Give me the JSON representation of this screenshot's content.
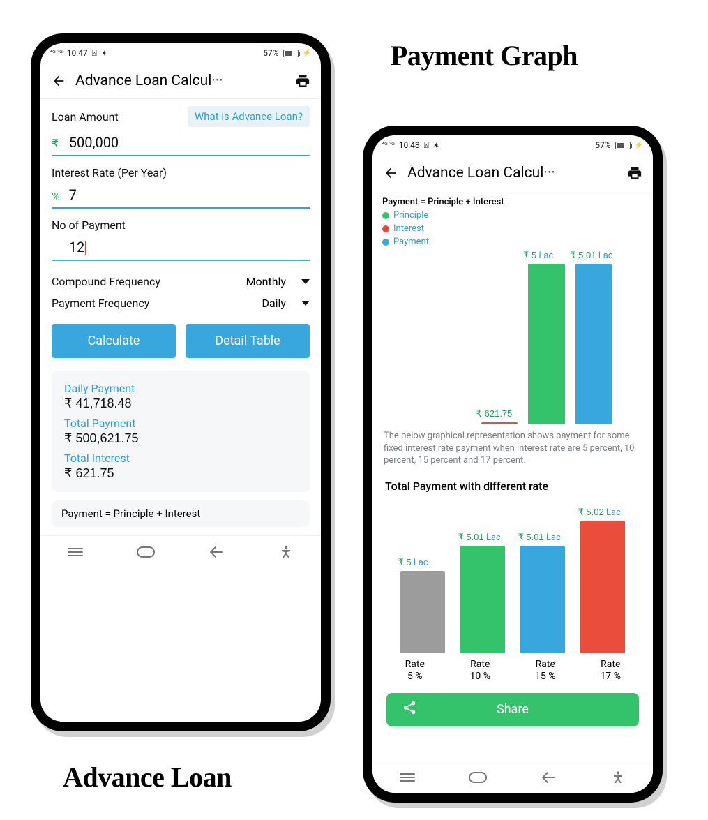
{
  "labels": {
    "right_title": "Payment Graph",
    "left_title": "Advance Loan"
  },
  "colors": {
    "accent_blue": "#37a7dd",
    "link_blue": "#2f9fd6",
    "green": "#34c36a",
    "red": "#eb4d3d",
    "grey_bar": "#9c9c9c",
    "rupee_green": "#1aa05a",
    "card_bg": "#f5f7f8"
  },
  "status": {
    "time_a": "10:47",
    "time_b": "10:48",
    "net": "4G 3G",
    "battery_pct": "57%",
    "battery_fill_pct": 57
  },
  "appbar": {
    "title": "Advance Loan Calcul···"
  },
  "form": {
    "loan_amount_label": "Loan Amount",
    "help_text": "What is Advance Loan?",
    "loan_amount_prefix": "₹",
    "loan_amount_value": "500,000",
    "interest_label": "Interest Rate (Per Year)",
    "interest_prefix": "%",
    "interest_value": "7",
    "nop_label": "No of Payment",
    "nop_value": "12",
    "compound_label": "Compound Frequency",
    "compound_value": "Monthly",
    "payment_freq_label": "Payment Frequency",
    "payment_freq_value": "Daily",
    "btn_calculate": "Calculate",
    "btn_detail": "Detail Table"
  },
  "results": {
    "k1": "Daily Payment",
    "v1": "₹ 41,718.48",
    "k2": "Total Payment",
    "v2": "₹ 500,621.75",
    "k3": "Total Interest",
    "v3": "₹ 621.75"
  },
  "note": "Payment = Principle + Interest",
  "graph_screen": {
    "legend_title": "Payment = Principle + Interest",
    "legend": [
      {
        "label": "Principle",
        "color": "#34c36a"
      },
      {
        "label": "Interest",
        "color": "#eb4d3d"
      },
      {
        "label": "Payment",
        "color": "#37a7dd"
      }
    ],
    "chart1": {
      "type": "bar",
      "ylim": [
        0,
        5.01
      ],
      "bars": [
        {
          "label_rupee": "₹ 621.75",
          "label_lac": "",
          "value": 0.02,
          "color": "#eb4d3d",
          "x_pct": 38,
          "w_pct": 14
        },
        {
          "label_rupee": "₹ 5",
          "label_lac": "Lac",
          "value": 5.0,
          "color": "#34c36a",
          "x_pct": 56,
          "w_pct": 14
        },
        {
          "label_rupee": "₹ 5.01",
          "label_lac": "Lac",
          "value": 5.01,
          "color": "#37a7dd",
          "x_pct": 74,
          "w_pct": 14
        }
      ]
    },
    "desc": "The below graphical representation shows payment for some fixed interest rate payment when interest rate are 5 percent, 10 percent, 15 percent and 17 percent.",
    "chart2_title": "Total Payment with different rate",
    "chart2": {
      "type": "bar",
      "ylim": [
        0,
        5.02
      ],
      "bars": [
        {
          "top_rupee": "₹ 5",
          "top_lac": "Lac",
          "value": 5.0,
          "color": "#9c9c9c",
          "xlabel_l1": "Rate",
          "xlabel_l2": "5 %"
        },
        {
          "top_rupee": "₹ 5.01",
          "top_lac": "Lac",
          "value": 5.01,
          "color": "#34c36a",
          "xlabel_l1": "Rate",
          "xlabel_l2": "10 %"
        },
        {
          "top_rupee": "₹ 5.01",
          "top_lac": "Lac",
          "value": 5.01,
          "color": "#37a7dd",
          "xlabel_l1": "Rate",
          "xlabel_l2": "15 %"
        },
        {
          "top_rupee": "₹ 5.02",
          "top_lac": "Lac",
          "value": 5.02,
          "color": "#eb4d3d",
          "xlabel_l1": "Rate",
          "xlabel_l2": "17 %"
        }
      ]
    },
    "share_label": "Share"
  }
}
